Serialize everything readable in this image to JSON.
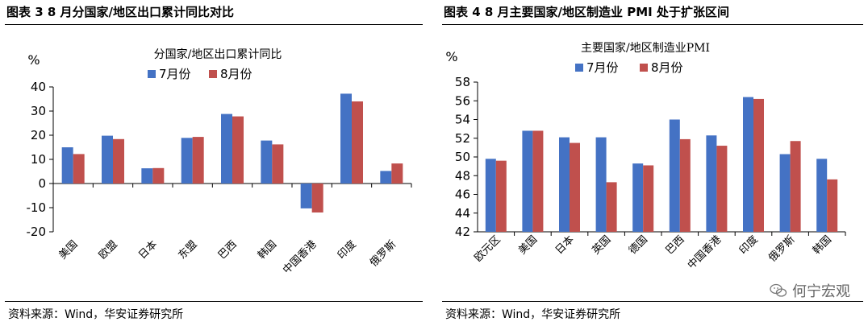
{
  "colors": {
    "july": "#4472C4",
    "august": "#C0504D",
    "axis": "#000000"
  },
  "left": {
    "figure_title": "图表 3 8 月分国家/地区出口累计同比对比",
    "source": "资料来源：Wind，华安证券研究所",
    "chart_data": {
      "type": "bar",
      "title": "分国家/地区出口累计同比",
      "ylabel": "%",
      "xlabel": "",
      "ylim": [
        -20,
        40
      ],
      "yticks": [
        "40",
        "30",
        "20",
        "10",
        "0",
        "-10",
        "-20"
      ],
      "categories": [
        "美国",
        "欧盟",
        "日本",
        "东盟",
        "巴西",
        "韩国",
        "中国香港",
        "印度",
        "俄罗斯"
      ],
      "series": [
        {
          "name": "7月份",
          "values": [
            15.0,
            19.8,
            6.3,
            18.9,
            28.8,
            17.8,
            -10.3,
            37.2,
            5.2
          ]
        },
        {
          "name": "8月份",
          "values": [
            12.2,
            18.4,
            6.4,
            19.3,
            27.8,
            16.2,
            -12.0,
            34.0,
            8.3
          ]
        }
      ],
      "legend_position": "top-center"
    }
  },
  "right": {
    "figure_title": "图表 4 8 月主要国家/地区制造业 PMI 处于扩张区间",
    "source": "资料来源：Wind，华安证券研究所",
    "watermark": "何宁宏观",
    "chart_data": {
      "type": "bar",
      "title": "主要国家/地区制造业PMI",
      "ylabel": "%",
      "xlabel": "",
      "ylim": [
        42,
        58
      ],
      "yticks": [
        "58",
        "56",
        "54",
        "52",
        "50",
        "48",
        "46",
        "44",
        "42"
      ],
      "categories": [
        "欧元区",
        "美国",
        "日本",
        "英国",
        "德国",
        "巴西",
        "中国香港",
        "印度",
        "俄罗斯",
        "韩国"
      ],
      "series": [
        {
          "name": "7月份",
          "values": [
            49.8,
            52.8,
            52.1,
            52.1,
            49.3,
            54.0,
            52.3,
            56.4,
            50.3,
            49.8
          ]
        },
        {
          "name": "8月份",
          "values": [
            49.6,
            52.8,
            51.5,
            47.3,
            49.1,
            51.9,
            51.2,
            56.2,
            51.7,
            47.6
          ]
        }
      ],
      "legend_position": "top-center"
    }
  }
}
